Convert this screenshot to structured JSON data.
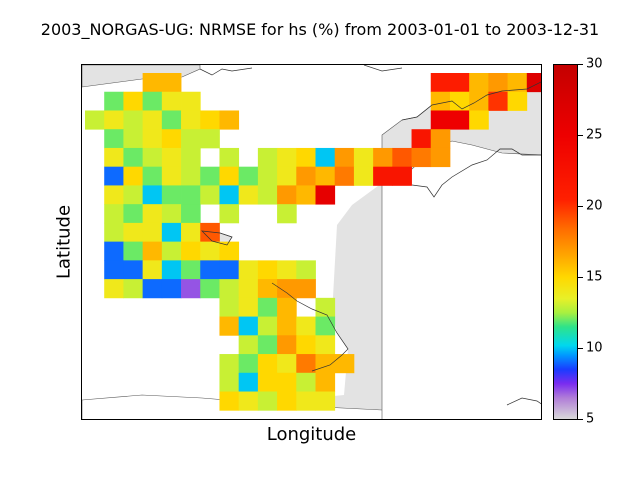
{
  "title": "2003_NORGAS-UG: NRMSE for hs (%) from 2003-01-01 to 2003-12-31",
  "xlabel": "Longitude",
  "ylabel": "Latitude",
  "colorbar": {
    "min": 5,
    "max": 30,
    "ticks": [
      "5",
      "10",
      "15",
      "20",
      "25",
      "30"
    ]
  },
  "colors": {
    "land": "#e3e3e3",
    "sea": "#ffffff",
    "coast": "#555555"
  },
  "colormap_stops": [
    [
      5,
      "#d9d9d9"
    ],
    [
      6.5,
      "#b07cd8"
    ],
    [
      7.5,
      "#7a2cf0"
    ],
    [
      8.5,
      "#1a3cff"
    ],
    [
      9.5,
      "#0098ff"
    ],
    [
      10.2,
      "#00d8ee"
    ],
    [
      11.5,
      "#2ee38a"
    ],
    [
      12.5,
      "#a8f040"
    ],
    [
      13.5,
      "#e8f028"
    ],
    [
      15,
      "#ffd800"
    ],
    [
      16.5,
      "#ffa800"
    ],
    [
      18.5,
      "#ff6a00"
    ],
    [
      20.5,
      "#ff2000"
    ],
    [
      25,
      "#ee0000"
    ],
    [
      30,
      "#c40000"
    ]
  ],
  "chart_data": {
    "type": "heatmap",
    "title": "2003_NORGAS-UG: NRMSE for hs (%) from 2003-01-01 to 2003-12-31",
    "xlabel": "Longitude",
    "ylabel": "Latitude",
    "value_range": [
      5,
      30
    ],
    "grid_rows": 19,
    "grid_cols": 24,
    "cells": [
      [
        0,
        3,
        16
      ],
      [
        0,
        4,
        16
      ],
      [
        0,
        18,
        21
      ],
      [
        0,
        19,
        21
      ],
      [
        0,
        20,
        16
      ],
      [
        0,
        21,
        17
      ],
      [
        0,
        22,
        16
      ],
      [
        0,
        23,
        27
      ],
      [
        1,
        1,
        12
      ],
      [
        1,
        2,
        15
      ],
      [
        1,
        3,
        12
      ],
      [
        1,
        4,
        14
      ],
      [
        1,
        5,
        14
      ],
      [
        1,
        18,
        16
      ],
      [
        1,
        19,
        15
      ],
      [
        1,
        20,
        16
      ],
      [
        1,
        21,
        20
      ],
      [
        1,
        22,
        15
      ],
      [
        2,
        0,
        13
      ],
      [
        2,
        1,
        14
      ],
      [
        2,
        2,
        13
      ],
      [
        2,
        3,
        14
      ],
      [
        2,
        4,
        12
      ],
      [
        2,
        5,
        14
      ],
      [
        2,
        6,
        15
      ],
      [
        2,
        7,
        16
      ],
      [
        2,
        18,
        25
      ],
      [
        2,
        19,
        25
      ],
      [
        2,
        20,
        15
      ],
      [
        3,
        1,
        12
      ],
      [
        3,
        2,
        13
      ],
      [
        3,
        3,
        14
      ],
      [
        3,
        4,
        15
      ],
      [
        3,
        5,
        13
      ],
      [
        3,
        6,
        13
      ],
      [
        3,
        17,
        22
      ],
      [
        3,
        18,
        17
      ],
      [
        4,
        1,
        14
      ],
      [
        4,
        2,
        12
      ],
      [
        4,
        3,
        13
      ],
      [
        4,
        4,
        14
      ],
      [
        4,
        5,
        13
      ],
      [
        4,
        7,
        13
      ],
      [
        4,
        9,
        13
      ],
      [
        4,
        10,
        14
      ],
      [
        4,
        11,
        15
      ],
      [
        4,
        12,
        10
      ],
      [
        4,
        13,
        17
      ],
      [
        4,
        14,
        14
      ],
      [
        4,
        15,
        17
      ],
      [
        4,
        16,
        19
      ],
      [
        4,
        17,
        18
      ],
      [
        4,
        18,
        17
      ],
      [
        5,
        1,
        9
      ],
      [
        5,
        2,
        15
      ],
      [
        5,
        3,
        12
      ],
      [
        5,
        4,
        14
      ],
      [
        5,
        5,
        13
      ],
      [
        5,
        6,
        12
      ],
      [
        5,
        7,
        15
      ],
      [
        5,
        8,
        12
      ],
      [
        5,
        9,
        13
      ],
      [
        5,
        10,
        14
      ],
      [
        5,
        11,
        17
      ],
      [
        5,
        12,
        16
      ],
      [
        5,
        13,
        18
      ],
      [
        5,
        14,
        14
      ],
      [
        5,
        15,
        22
      ],
      [
        5,
        16,
        22
      ],
      [
        6,
        1,
        14
      ],
      [
        6,
        2,
        13
      ],
      [
        6,
        3,
        10
      ],
      [
        6,
        4,
        12
      ],
      [
        6,
        5,
        12
      ],
      [
        6,
        6,
        13
      ],
      [
        6,
        7,
        10
      ],
      [
        6,
        8,
        14
      ],
      [
        6,
        9,
        13
      ],
      [
        6,
        10,
        17
      ],
      [
        6,
        11,
        16
      ],
      [
        6,
        12,
        26
      ],
      [
        7,
        1,
        13
      ],
      [
        7,
        2,
        12
      ],
      [
        7,
        3,
        14
      ],
      [
        7,
        4,
        13
      ],
      [
        7,
        5,
        12
      ],
      [
        7,
        7,
        13
      ],
      [
        7,
        10,
        13
      ],
      [
        8,
        1,
        13
      ],
      [
        8,
        2,
        14
      ],
      [
        8,
        3,
        14
      ],
      [
        8,
        4,
        10
      ],
      [
        8,
        5,
        14
      ],
      [
        8,
        6,
        19
      ],
      [
        9,
        1,
        9
      ],
      [
        9,
        2,
        12
      ],
      [
        9,
        3,
        16
      ],
      [
        9,
        4,
        13
      ],
      [
        9,
        5,
        15
      ],
      [
        9,
        6,
        14
      ],
      [
        9,
        7,
        15
      ],
      [
        10,
        1,
        9
      ],
      [
        10,
        2,
        9
      ],
      [
        10,
        3,
        14
      ],
      [
        10,
        4,
        10
      ],
      [
        10,
        5,
        12
      ],
      [
        10,
        6,
        9
      ],
      [
        10,
        7,
        9
      ],
      [
        10,
        8,
        14
      ],
      [
        10,
        9,
        15
      ],
      [
        10,
        10,
        14
      ],
      [
        10,
        11,
        13
      ],
      [
        11,
        1,
        14
      ],
      [
        11,
        2,
        13
      ],
      [
        11,
        3,
        9
      ],
      [
        11,
        4,
        9
      ],
      [
        11,
        5,
        7
      ],
      [
        11,
        6,
        12
      ],
      [
        11,
        7,
        13
      ],
      [
        11,
        8,
        14
      ],
      [
        11,
        9,
        16
      ],
      [
        11,
        10,
        17
      ],
      [
        11,
        11,
        17
      ],
      [
        12,
        7,
        13
      ],
      [
        12,
        8,
        14
      ],
      [
        12,
        9,
        12
      ],
      [
        12,
        10,
        16
      ],
      [
        12,
        12,
        13
      ],
      [
        13,
        7,
        16
      ],
      [
        13,
        8,
        10
      ],
      [
        13,
        9,
        13
      ],
      [
        13,
        10,
        16
      ],
      [
        13,
        11,
        14
      ],
      [
        13,
        12,
        12
      ],
      [
        14,
        8,
        13
      ],
      [
        14,
        9,
        12
      ],
      [
        14,
        10,
        17
      ],
      [
        14,
        11,
        15
      ],
      [
        14,
        12,
        14
      ],
      [
        15,
        7,
        13
      ],
      [
        15,
        8,
        12
      ],
      [
        15,
        9,
        15
      ],
      [
        15,
        10,
        14
      ],
      [
        15,
        11,
        18
      ],
      [
        15,
        12,
        16
      ],
      [
        15,
        13,
        16
      ],
      [
        16,
        7,
        13
      ],
      [
        16,
        8,
        10
      ],
      [
        16,
        9,
        15
      ],
      [
        16,
        10,
        15
      ],
      [
        16,
        11,
        13
      ],
      [
        16,
        12,
        16
      ],
      [
        17,
        7,
        15
      ],
      [
        17,
        8,
        14
      ],
      [
        17,
        9,
        13
      ],
      [
        17,
        10,
        15
      ],
      [
        17,
        11,
        14
      ],
      [
        17,
        12,
        14
      ]
    ]
  }
}
